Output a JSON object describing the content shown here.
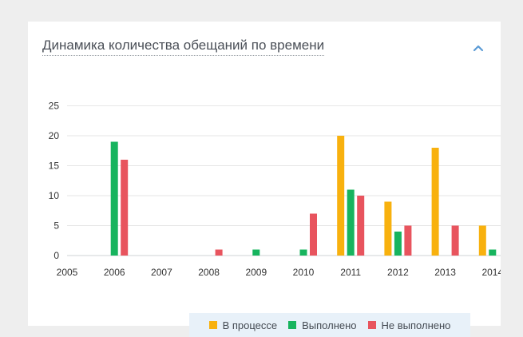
{
  "card": {
    "title": "Динамика количества обещаний по времени",
    "collapse_icon": "chevron-up-icon"
  },
  "colors": {
    "in_progress": "#f8b10e",
    "done": "#17b45e",
    "not_done": "#e8545e",
    "collapse": "#5b9bd5"
  },
  "chart_data": {
    "type": "bar",
    "x_ticks": [
      "2005",
      "2006",
      "2007",
      "2008",
      "2009",
      "2010",
      "2011",
      "2012",
      "2013",
      "2014"
    ],
    "y_ticks": [
      "0",
      "5",
      "10",
      "15",
      "20",
      "25"
    ],
    "ylim": [
      0,
      25
    ],
    "grid": true,
    "legend_position": "bottom",
    "series": [
      {
        "name": "В процессе",
        "color": "#f8b10e",
        "points": [
          {
            "x": "2011",
            "y": 20
          },
          {
            "x": "2012",
            "y": 9
          },
          {
            "x": "2013",
            "y": 18
          },
          {
            "x": "2014",
            "y": 5
          }
        ]
      },
      {
        "name": "Выполнено",
        "color": "#17b45e",
        "points": [
          {
            "x": "2006",
            "y": 19
          },
          {
            "x": "2009",
            "y": 1
          },
          {
            "x": "2010",
            "y": 1
          },
          {
            "x": "2011",
            "y": 11
          },
          {
            "x": "2012",
            "y": 4
          },
          {
            "x": "2014",
            "y": 1
          }
        ]
      },
      {
        "name": "Не выполнено",
        "color": "#e8545e",
        "points": [
          {
            "x": "2006",
            "y": 16
          },
          {
            "x": "2008",
            "y": 1
          },
          {
            "x": "2010",
            "y": 7
          },
          {
            "x": "2011",
            "y": 10
          },
          {
            "x": "2012",
            "y": 5
          },
          {
            "x": "2013",
            "y": 5
          }
        ]
      }
    ]
  },
  "legend": {
    "items": [
      "В процессе",
      "Выполнено",
      "Не выполнено"
    ]
  }
}
